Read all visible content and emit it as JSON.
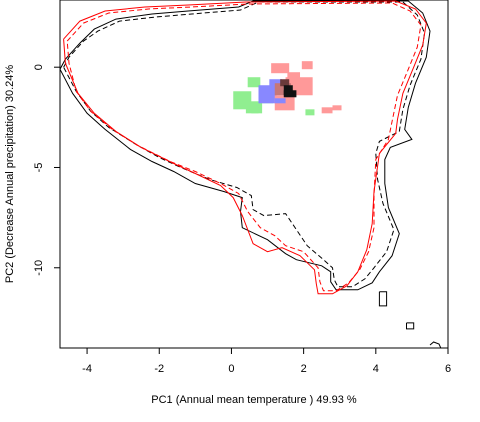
{
  "chart_data": {
    "type": "scatter",
    "xlabel": "PC1 (Annual mean temperature ) 49.93 %",
    "ylabel": "PC2 (Decrease Annual precipitation) 30.24%",
    "xlim": [
      -4.75,
      6.0
    ],
    "ylim": [
      -14.0,
      3.35
    ],
    "x_ticks": [
      -4,
      -2,
      0,
      2,
      4,
      6
    ],
    "y_ticks": [
      0,
      -5,
      -10
    ],
    "x_tick_labels": [
      "-4",
      "-2",
      "0",
      "2",
      "4",
      "6"
    ],
    "y_tick_labels": [
      "0",
      "-5",
      "-10"
    ],
    "grid": false,
    "legend": "none",
    "colors": {
      "contour_a": "#000000",
      "contour_b": "#ff0000",
      "density_green": "#90ee90",
      "density_blue": "#8888ff",
      "density_pink": "#ff9999",
      "density_core": "#111111"
    },
    "series": [
      {
        "line": "solid",
        "color": "#000000",
        "points": [
          [
            -4.75,
            -0.1
          ],
          [
            -4.6,
            0.4
          ],
          [
            -4.2,
            1.2
          ],
          [
            -3.8,
            1.9
          ],
          [
            -3.2,
            2.4
          ],
          [
            -2.2,
            2.65
          ],
          [
            -1.2,
            2.8
          ],
          [
            0.2,
            3.0
          ],
          [
            0.6,
            3.3
          ],
          [
            4.9,
            3.3
          ],
          [
            5.3,
            2.7
          ],
          [
            5.5,
            1.8
          ],
          [
            5.4,
            0.5
          ],
          [
            5.1,
            -0.8
          ],
          [
            4.9,
            -2.0
          ],
          [
            4.8,
            -3.1
          ],
          [
            5.0,
            -3.6
          ],
          [
            4.4,
            -4.0
          ],
          [
            4.25,
            -4.6
          ],
          [
            4.25,
            -5.8
          ],
          [
            4.35,
            -7.0
          ],
          [
            4.65,
            -8.3
          ],
          [
            4.45,
            -9.4
          ],
          [
            4.1,
            -10.2
          ],
          [
            3.9,
            -10.75
          ],
          [
            3.5,
            -11.1
          ],
          [
            2.9,
            -11.1
          ],
          [
            2.75,
            -10.7
          ],
          [
            2.75,
            -10.2
          ],
          [
            2.5,
            -9.9
          ],
          [
            1.8,
            -9.6
          ],
          [
            1.5,
            -9.3
          ],
          [
            1.0,
            -8.6
          ],
          [
            0.3,
            -8.0
          ],
          [
            0.25,
            -7.2
          ],
          [
            0.3,
            -6.5
          ],
          [
            -0.2,
            -6.2
          ],
          [
            -1.0,
            -5.8
          ],
          [
            -1.6,
            -5.2
          ],
          [
            -2.2,
            -4.7
          ],
          [
            -2.8,
            -4.1
          ],
          [
            -3.5,
            -3.1
          ],
          [
            -4.0,
            -2.3
          ],
          [
            -4.4,
            -1.3
          ],
          [
            -4.75,
            -0.1
          ]
        ]
      },
      {
        "line": "dashed",
        "color": "#000000",
        "points": [
          [
            -4.65,
            0.0
          ],
          [
            -4.5,
            0.5
          ],
          [
            -4.1,
            1.3
          ],
          [
            -3.7,
            1.8
          ],
          [
            -3.1,
            2.3
          ],
          [
            -2.1,
            2.5
          ],
          [
            -1.1,
            2.65
          ],
          [
            0.25,
            2.85
          ],
          [
            0.75,
            3.25
          ],
          [
            4.75,
            3.25
          ],
          [
            5.15,
            2.6
          ],
          [
            5.35,
            1.7
          ],
          [
            5.25,
            0.4
          ],
          [
            4.95,
            -0.9
          ],
          [
            4.75,
            -2.1
          ],
          [
            4.65,
            -3.2
          ],
          [
            4.1,
            -3.7
          ],
          [
            4.0,
            -4.3
          ],
          [
            4.05,
            -5.6
          ],
          [
            4.2,
            -6.8
          ],
          [
            4.5,
            -8.1
          ],
          [
            4.3,
            -9.2
          ],
          [
            3.95,
            -10.0
          ],
          [
            3.7,
            -10.55
          ],
          [
            3.35,
            -10.95
          ],
          [
            2.95,
            -10.95
          ],
          [
            2.85,
            -10.6
          ],
          [
            2.8,
            -10.0
          ],
          [
            2.55,
            -9.6
          ],
          [
            2.1,
            -8.9
          ],
          [
            1.5,
            -7.3
          ],
          [
            0.9,
            -7.4
          ],
          [
            0.6,
            -7.1
          ],
          [
            0.55,
            -6.4
          ],
          [
            0.15,
            -6.0
          ],
          [
            -0.6,
            -5.6
          ],
          [
            -1.4,
            -5.0
          ],
          [
            -2.0,
            -4.5
          ],
          [
            -2.6,
            -3.9
          ],
          [
            -3.4,
            -3.0
          ],
          [
            -3.9,
            -2.2
          ],
          [
            -4.3,
            -1.2
          ],
          [
            -4.65,
            0.0
          ]
        ]
      },
      {
        "line": "solid",
        "color": "#ff0000",
        "points": [
          [
            -4.65,
            1.4
          ],
          [
            -4.2,
            2.3
          ],
          [
            -3.5,
            2.8
          ],
          [
            -2.4,
            3.0
          ],
          [
            -1.2,
            3.1
          ],
          [
            0.4,
            3.25
          ],
          [
            4.55,
            3.3
          ],
          [
            5.1,
            2.9
          ],
          [
            5.4,
            2.2
          ],
          [
            5.3,
            1.1
          ],
          [
            5.05,
            0.0
          ],
          [
            4.75,
            -1.3
          ],
          [
            4.6,
            -2.6
          ],
          [
            4.55,
            -3.3
          ],
          [
            4.1,
            -4.3
          ],
          [
            3.95,
            -6.2
          ],
          [
            3.9,
            -7.8
          ],
          [
            3.75,
            -9.1
          ],
          [
            3.5,
            -10.2
          ],
          [
            3.2,
            -10.9
          ],
          [
            2.8,
            -11.3
          ],
          [
            2.4,
            -11.3
          ],
          [
            2.35,
            -10.8
          ],
          [
            2.3,
            -10.1
          ],
          [
            1.9,
            -9.4
          ],
          [
            1.4,
            -9.0
          ],
          [
            1.0,
            -9.2
          ],
          [
            0.6,
            -8.8
          ],
          [
            0.3,
            -7.4
          ],
          [
            0.05,
            -6.5
          ],
          [
            -0.3,
            -5.9
          ],
          [
            -1.0,
            -5.3
          ],
          [
            -1.6,
            -4.8
          ],
          [
            -2.5,
            -4.0
          ],
          [
            -3.2,
            -3.2
          ],
          [
            -3.8,
            -2.3
          ],
          [
            -4.25,
            -1.3
          ],
          [
            -4.6,
            0.2
          ],
          [
            -4.65,
            1.4
          ]
        ]
      },
      {
        "line": "dashed",
        "color": "#ff0000",
        "points": [
          [
            -4.55,
            1.3
          ],
          [
            -4.1,
            2.2
          ],
          [
            -3.4,
            2.7
          ],
          [
            -2.3,
            2.9
          ],
          [
            -1.1,
            3.0
          ],
          [
            0.45,
            3.15
          ],
          [
            4.45,
            3.2
          ],
          [
            4.95,
            2.8
          ],
          [
            5.25,
            2.1
          ],
          [
            5.15,
            1.0
          ],
          [
            4.9,
            -0.1
          ],
          [
            4.6,
            -1.4
          ],
          [
            4.45,
            -2.7
          ],
          [
            4.35,
            -3.6
          ],
          [
            4.0,
            -4.6
          ],
          [
            3.95,
            -6.4
          ],
          [
            3.95,
            -8.0
          ],
          [
            3.8,
            -9.2
          ],
          [
            3.55,
            -10.1
          ],
          [
            3.25,
            -10.75
          ],
          [
            2.9,
            -11.15
          ],
          [
            2.55,
            -11.15
          ],
          [
            2.45,
            -10.7
          ],
          [
            2.4,
            -10.0
          ],
          [
            2.0,
            -9.2
          ],
          [
            1.5,
            -8.9
          ],
          [
            1.2,
            -8.4
          ],
          [
            0.8,
            -8.0
          ],
          [
            0.45,
            -7.2
          ],
          [
            0.2,
            -6.3
          ],
          [
            -0.3,
            -5.8
          ],
          [
            -1.0,
            -5.2
          ],
          [
            -1.7,
            -4.7
          ],
          [
            -2.6,
            -3.9
          ],
          [
            -3.3,
            -3.1
          ],
          [
            -3.9,
            -2.2
          ],
          [
            -4.3,
            -1.2
          ],
          [
            -4.5,
            0.2
          ],
          [
            -4.55,
            1.3
          ]
        ]
      },
      {
        "line": "solid",
        "color": "#000000",
        "points": [
          [
            4.1,
            -11.2
          ],
          [
            4.3,
            -11.2
          ],
          [
            4.3,
            -11.9
          ],
          [
            4.1,
            -11.9
          ],
          [
            4.1,
            -11.2
          ]
        ]
      },
      {
        "line": "solid",
        "color": "#000000",
        "points": [
          [
            4.85,
            -12.75
          ],
          [
            5.05,
            -12.75
          ],
          [
            5.05,
            -13.05
          ],
          [
            4.85,
            -13.05
          ],
          [
            4.85,
            -12.75
          ]
        ]
      },
      {
        "line": "solid",
        "color": "#000000",
        "points": [
          [
            5.5,
            -13.85
          ],
          [
            5.6,
            -13.7
          ],
          [
            5.75,
            -13.8
          ],
          [
            5.8,
            -14.0
          ]
        ]
      }
    ],
    "density_cells": [
      {
        "x": 0.05,
        "y": -1.2,
        "w": 0.5,
        "h": 0.9,
        "color": "#90ee90"
      },
      {
        "x": 0.45,
        "y": -0.5,
        "w": 0.35,
        "h": 0.5,
        "color": "#90ee90"
      },
      {
        "x": 0.4,
        "y": -1.7,
        "w": 0.45,
        "h": 0.6,
        "color": "#90ee90"
      },
      {
        "x": 0.85,
        "y": -1.3,
        "w": 0.3,
        "h": 0.5,
        "color": "#90ee90"
      },
      {
        "x": 0.55,
        "y": -2.0,
        "w": 0.2,
        "h": 0.3,
        "color": "#90ee90"
      },
      {
        "x": 2.05,
        "y": -2.1,
        "w": 0.25,
        "h": 0.3,
        "color": "#90ee90"
      },
      {
        "x": 0.75,
        "y": -0.9,
        "w": 0.5,
        "h": 0.9,
        "color": "#8888ff"
      },
      {
        "x": 1.05,
        "y": -0.6,
        "w": 0.35,
        "h": 0.4,
        "color": "#8888ff"
      },
      {
        "x": 1.1,
        "y": 0.2,
        "w": 0.5,
        "h": 0.5,
        "color": "#ff9999"
      },
      {
        "x": 1.55,
        "y": -0.25,
        "w": 0.35,
        "h": 0.35,
        "color": "#ff9999"
      },
      {
        "x": 1.95,
        "y": 0.3,
        "w": 0.3,
        "h": 0.4,
        "color": "#ff9999"
      },
      {
        "x": 1.5,
        "y": -0.5,
        "w": 0.75,
        "h": 0.9,
        "color": "#ff9999"
      },
      {
        "x": 1.2,
        "y": -1.4,
        "w": 0.55,
        "h": 0.75,
        "color": "#ff9999"
      },
      {
        "x": 2.5,
        "y": -2.0,
        "w": 0.3,
        "h": 0.3,
        "color": "#ff9999"
      },
      {
        "x": 2.8,
        "y": -1.9,
        "w": 0.25,
        "h": 0.25,
        "color": "#ff9999"
      },
      {
        "x": 1.2,
        "y": -0.8,
        "w": 0.45,
        "h": 0.6,
        "color": "#c77777"
      },
      {
        "x": 1.35,
        "y": -0.6,
        "w": 0.25,
        "h": 0.35,
        "color": "#6a3a3a"
      },
      {
        "x": 1.45,
        "y": -1.15,
        "w": 0.35,
        "h": 0.35,
        "color": "#111111"
      },
      {
        "x": 1.45,
        "y": -0.9,
        "w": 0.25,
        "h": 0.5,
        "color": "#111111"
      },
      {
        "x": 1.2,
        "y": -1.55,
        "w": 0.3,
        "h": 0.25,
        "color": "#8888ff"
      }
    ]
  }
}
